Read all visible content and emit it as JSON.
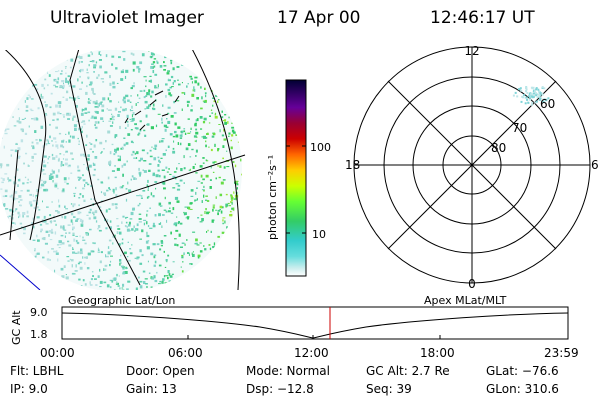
{
  "header": {
    "instrument": "Ultraviolet Imager",
    "date": "17 Apr 00",
    "time": "12:46:17 UT"
  },
  "colorbar": {
    "label": "photon cm⁻²s⁻¹",
    "ticks": [
      "100",
      "10"
    ],
    "colors": [
      "#000033",
      "#330066",
      "#660099",
      "#990033",
      "#cc0000",
      "#ff6600",
      "#ffcc00",
      "#ccff00",
      "#66ff33",
      "#33cc66",
      "#33cccc",
      "#66dddd",
      "#cceeee",
      "#ffffff"
    ]
  },
  "polar_plot": {
    "mlt_labels": {
      "top": "12",
      "left": "18",
      "right": "6",
      "bottom": "0"
    },
    "lat_labels": [
      "60",
      "70",
      "80"
    ]
  },
  "timeline": {
    "left_title": "Geographic Lat/Lon",
    "right_title": "Apex  MLat/MLT",
    "y_axis_label": "GC Alt",
    "y_ticks": [
      "9.0",
      "1.8"
    ],
    "x_ticks": [
      "00:00",
      "06:00",
      "12:00",
      "18:00",
      "23:59"
    ],
    "marker_color": "#cc0000"
  },
  "status": {
    "flt": "Flt: LBHL",
    "ip": "IP:  9.0",
    "door": "Door: Open",
    "gain": "Gain: 13",
    "mode": "Mode: Normal",
    "dsp": "Dsp:  −12.8",
    "gc_alt": "GC Alt: 2.7 Re",
    "seq": "Seq: 39",
    "glat": "GLat: −76.6",
    "glon": "GLon: 310.6"
  }
}
